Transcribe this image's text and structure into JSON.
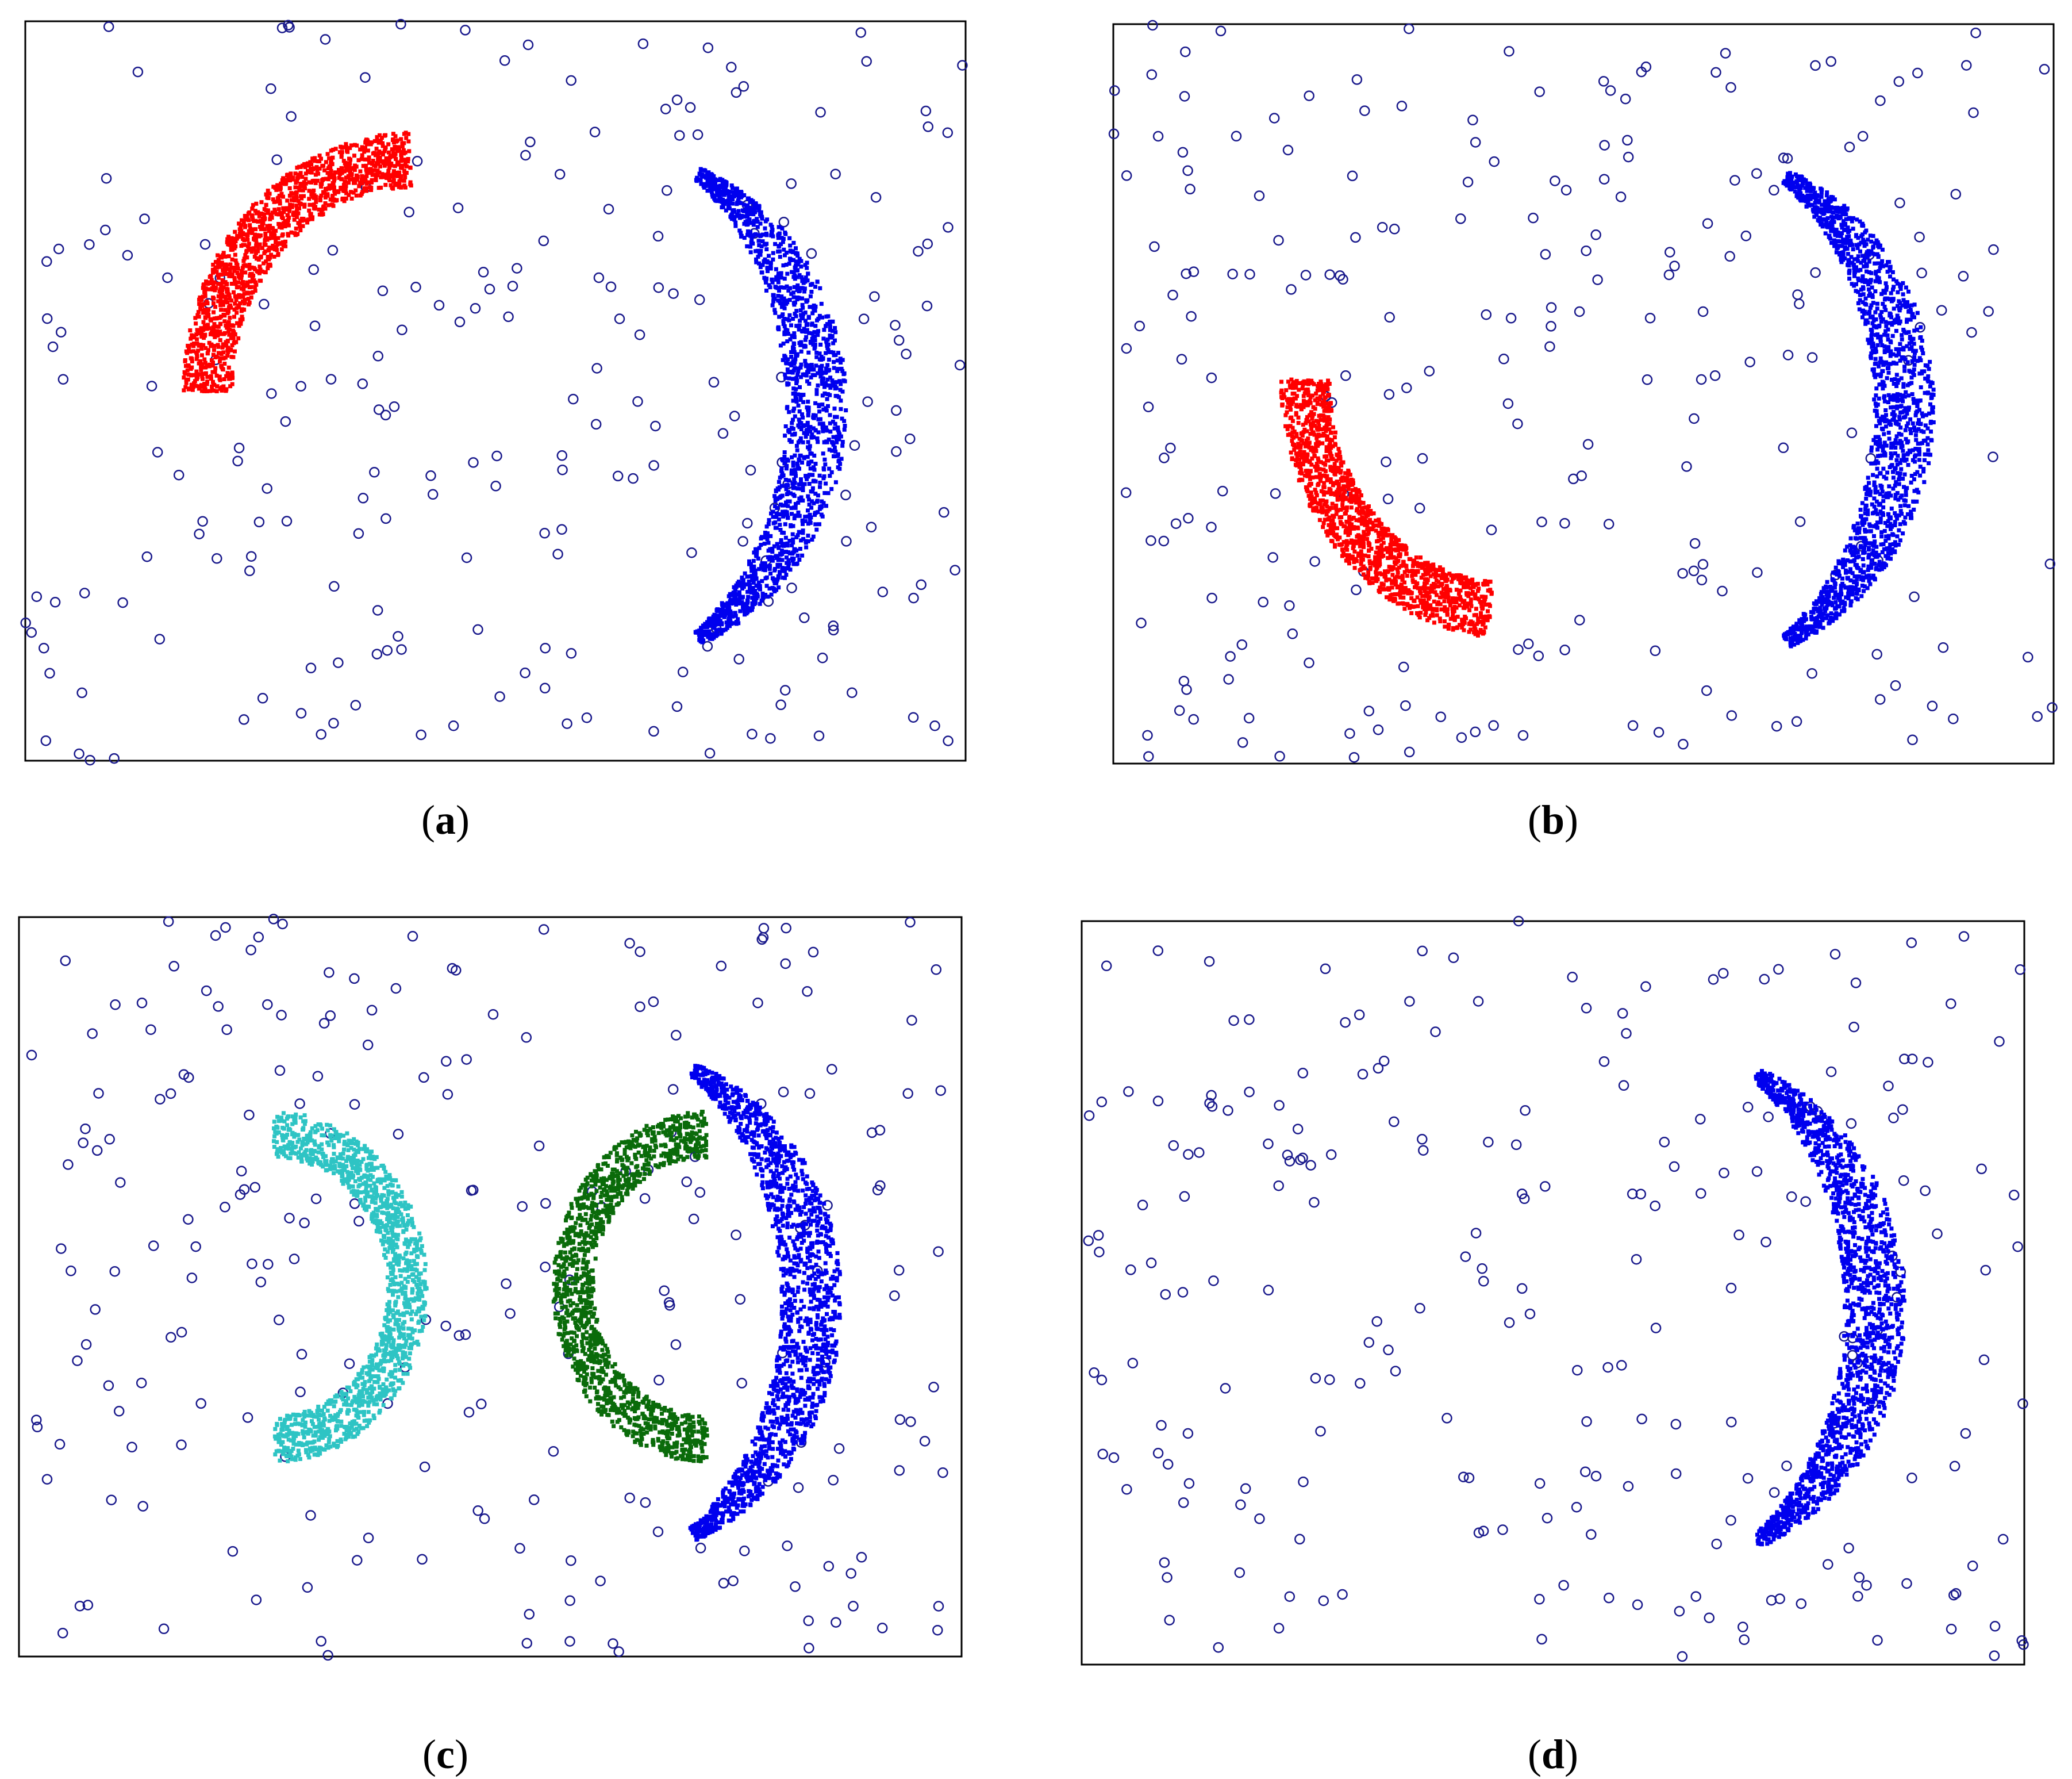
{
  "figure": {
    "captions": [
      {
        "pre": "(",
        "letter": "a",
        "post": ")"
      },
      {
        "pre": "(",
        "letter": "b",
        "post": ")"
      },
      {
        "pre": "(",
        "letter": "c",
        "post": ")"
      },
      {
        "pre": "(",
        "letter": "d",
        "post": ")"
      }
    ]
  },
  "colors": {
    "noise": "#1a1a8c",
    "blue": "#0000ee",
    "red": "#ff0000",
    "cyan": "#2ec4c4",
    "green": "#0a6b0a",
    "frame": "#000000"
  },
  "chart_data": [
    {
      "type": "scatter",
      "panel": "a",
      "xlim": [
        0,
        1
      ],
      "ylim": [
        0,
        1
      ],
      "grid": false,
      "axes_ticks": false,
      "noise_points": 230,
      "clusters": [
        {
          "shape": "arc",
          "color": "red",
          "center": [
            0.41,
            0.5
          ],
          "radius_inner": 0.22,
          "radius_outer": 0.28,
          "angle_from_deg": 90,
          "angle_to_deg": 180,
          "count": 1400
        },
        {
          "shape": "crescent",
          "color": "blue",
          "center": [
            0.59,
            0.48
          ],
          "radius": 0.29,
          "thickness": 0.06,
          "angle_from_deg": -60,
          "angle_to_deg": 60,
          "count": 1600
        }
      ]
    },
    {
      "type": "scatter",
      "panel": "b",
      "xlim": [
        0,
        1
      ],
      "ylim": [
        0,
        1
      ],
      "grid": false,
      "axes_ticks": false,
      "noise_points": 230,
      "clusters": [
        {
          "shape": "arc",
          "color": "red",
          "center": [
            0.42,
            0.52
          ],
          "radius_inner": 0.22,
          "radius_outer": 0.28,
          "angle_from_deg": 180,
          "angle_to_deg": 265,
          "count": 1400
        },
        {
          "shape": "crescent",
          "color": "blue",
          "center": [
            0.59,
            0.48
          ],
          "radius": 0.29,
          "thickness": 0.06,
          "angle_from_deg": -60,
          "angle_to_deg": 60,
          "count": 1600
        }
      ]
    },
    {
      "type": "scatter",
      "panel": "c",
      "xlim": [
        0,
        1
      ],
      "ylim": [
        0,
        1
      ],
      "grid": false,
      "axes_ticks": false,
      "noise_points": 230,
      "clusters": [
        {
          "shape": "arc",
          "color": "cyan",
          "center": [
            0.27,
            0.5
          ],
          "radius_inner": 0.14,
          "radius_outer": 0.19,
          "angle_from_deg": -90,
          "angle_to_deg": 90,
          "count": 1400
        },
        {
          "shape": "arc",
          "color": "green",
          "center": [
            0.73,
            0.5
          ],
          "radius_inner": 0.14,
          "radius_outer": 0.19,
          "angle_from_deg": 90,
          "angle_to_deg": 270,
          "count": 1400
        },
        {
          "shape": "crescent",
          "color": "blue",
          "center": [
            0.59,
            0.48
          ],
          "radius": 0.29,
          "thickness": 0.06,
          "angle_from_deg": -60,
          "angle_to_deg": 60,
          "count": 1600
        }
      ]
    },
    {
      "type": "scatter",
      "panel": "d",
      "xlim": [
        0,
        1
      ],
      "ylim": [
        0,
        1
      ],
      "grid": false,
      "axes_ticks": false,
      "noise_points": 230,
      "clusters": [
        {
          "shape": "crescent",
          "color": "blue",
          "center": [
            0.59,
            0.48
          ],
          "radius": 0.29,
          "thickness": 0.06,
          "angle_from_deg": -60,
          "angle_to_deg": 60,
          "count": 1600
        }
      ]
    }
  ]
}
